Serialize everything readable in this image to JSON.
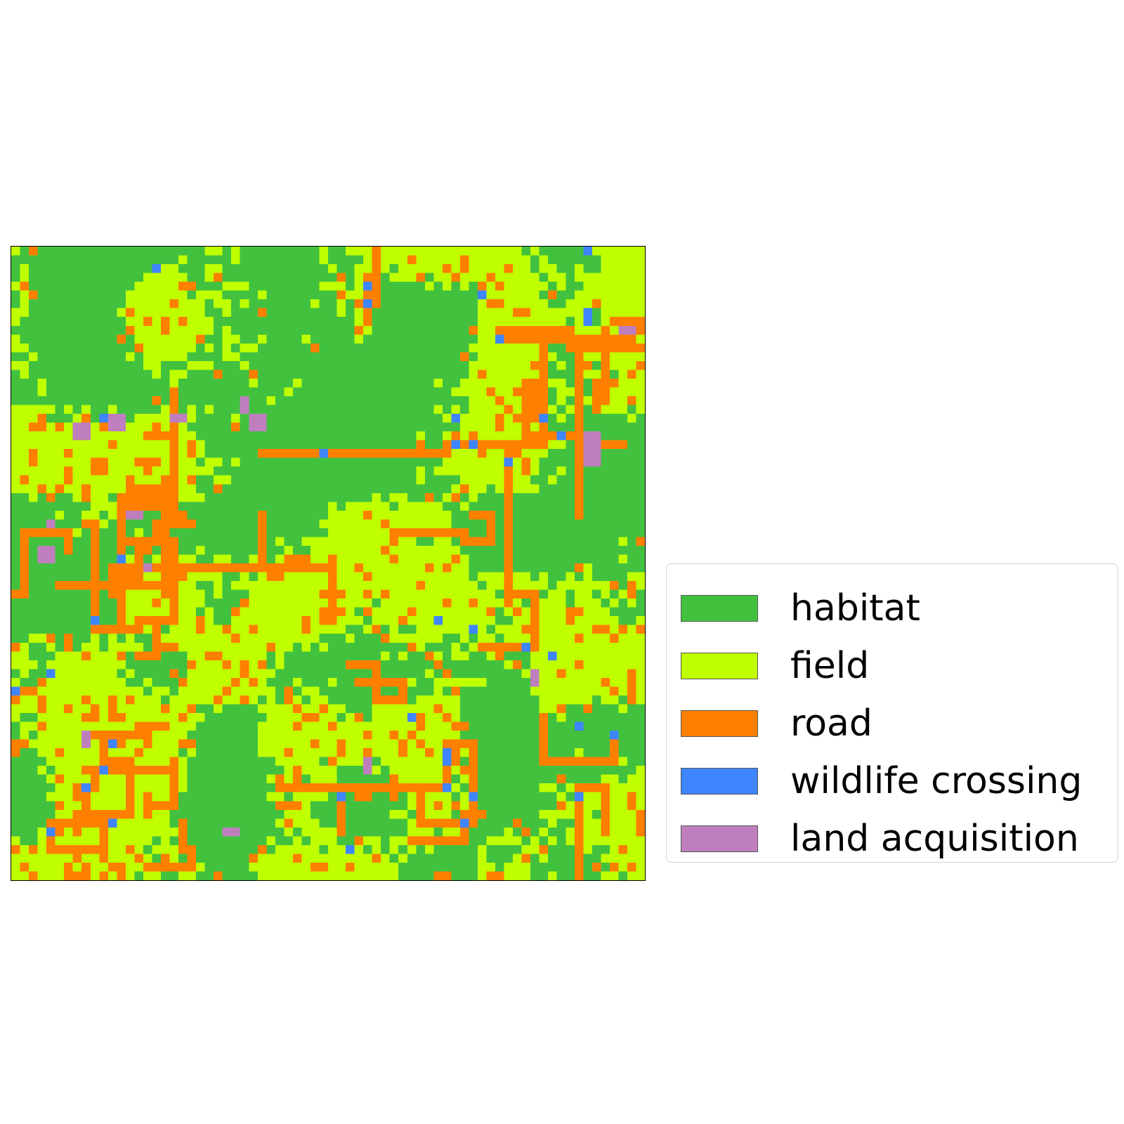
{
  "map": {
    "grid_size": 72,
    "classes": [
      "habitat",
      "field",
      "road",
      "wildlife crossing",
      "land acquisition"
    ],
    "colors": [
      "#42c13f",
      "#bfff00",
      "#ff7f00",
      "#3f85ff",
      "#bf7fbf"
    ]
  },
  "legend": {
    "items": [
      {
        "label": "habitat",
        "color": "#42c13f"
      },
      {
        "label": "field",
        "color": "#bfff00"
      },
      {
        "label": "road",
        "color": "#ff7f00"
      },
      {
        "label": "wildlife crossing",
        "color": "#3f85ff"
      },
      {
        "label": "land acquisition",
        "color": "#bf7fbf"
      }
    ]
  }
}
